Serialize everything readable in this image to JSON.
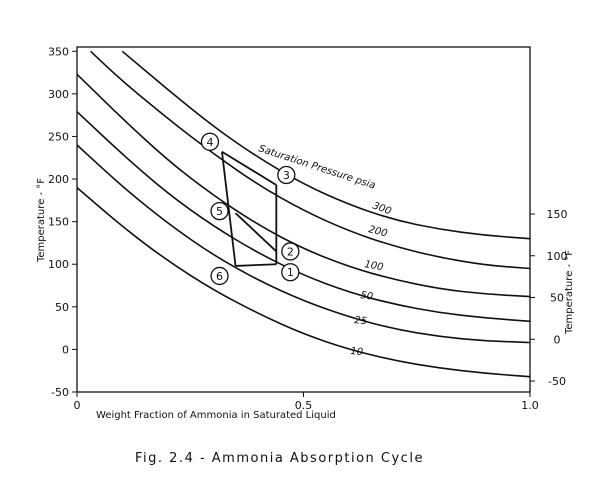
{
  "chart_data": {
    "type": "line",
    "caption": "Fig. 2.4 - Ammonia Absorption Cycle",
    "xlabel": "Weight Fraction of Ammonia in Saturated Liquid",
    "ylabel_left": "Temperature - °F",
    "ylabel_right": "Temperature - °F",
    "xlim": [
      0,
      1.0
    ],
    "ylim_left": [
      -50,
      350
    ],
    "xticks": [
      "0",
      "0.5",
      "1.0"
    ],
    "yticks_left": [
      "350",
      "300",
      "250",
      "200",
      "150",
      "100",
      "50",
      "0",
      "-50"
    ],
    "yticks_right": [
      "150",
      "100",
      "50",
      "0",
      "-50"
    ],
    "curve_title": "Saturation Pressure psia",
    "series": [
      {
        "name": "300",
        "x": [
          0.1,
          0.2,
          0.3,
          0.4,
          0.5,
          0.6,
          0.7,
          0.8,
          0.9,
          1.0
        ],
        "y": [
          350,
          305,
          262,
          225,
          194,
          170,
          152,
          141,
          134,
          130
        ]
      },
      {
        "name": "200",
        "x": [
          0.03,
          0.1,
          0.2,
          0.3,
          0.4,
          0.5,
          0.6,
          0.7,
          0.8,
          0.9,
          1.0
        ],
        "y": [
          350,
          315,
          271,
          230,
          193,
          163,
          139,
          121,
          108,
          99,
          95
        ]
      },
      {
        "name": "100",
        "x": [
          0,
          0.1,
          0.2,
          0.3,
          0.4,
          0.5,
          0.6,
          0.7,
          0.8,
          0.9,
          1.0
        ],
        "y": [
          323,
          271,
          222,
          181,
          146,
          118,
          97,
          82,
          71,
          65,
          62
        ]
      },
      {
        "name": "50",
        "x": [
          0,
          0.1,
          0.2,
          0.3,
          0.4,
          0.5,
          0.6,
          0.7,
          0.8,
          0.9,
          1.0
        ],
        "y": [
          279,
          229,
          183,
          145,
          113,
          87,
          67,
          53,
          43,
          37,
          33
        ]
      },
      {
        "name": "25",
        "x": [
          0,
          0.1,
          0.2,
          0.3,
          0.4,
          0.5,
          0.6,
          0.7,
          0.8,
          0.9,
          1.0
        ],
        "y": [
          240,
          191,
          148,
          111,
          81,
          57,
          38,
          24,
          15,
          10,
          8
        ]
      },
      {
        "name": "10",
        "x": [
          0,
          0.1,
          0.2,
          0.3,
          0.4,
          0.5,
          0.6,
          0.7,
          0.8,
          0.9,
          1.0
        ],
        "y": [
          190,
          144,
          104,
          70,
          42,
          18,
          0,
          -13,
          -22,
          -28,
          -32
        ]
      }
    ],
    "cycle_points": [
      {
        "label": "1",
        "x": 0.44,
        "y": 100
      },
      {
        "label": "2",
        "x": 0.44,
        "y": 115
      },
      {
        "label": "3",
        "x": 0.44,
        "y": 193
      },
      {
        "label": "4",
        "x": 0.32,
        "y": 232
      },
      {
        "label": "5",
        "x": 0.35,
        "y": 160
      },
      {
        "label": "6",
        "x": 0.35,
        "y": 98
      }
    ]
  }
}
